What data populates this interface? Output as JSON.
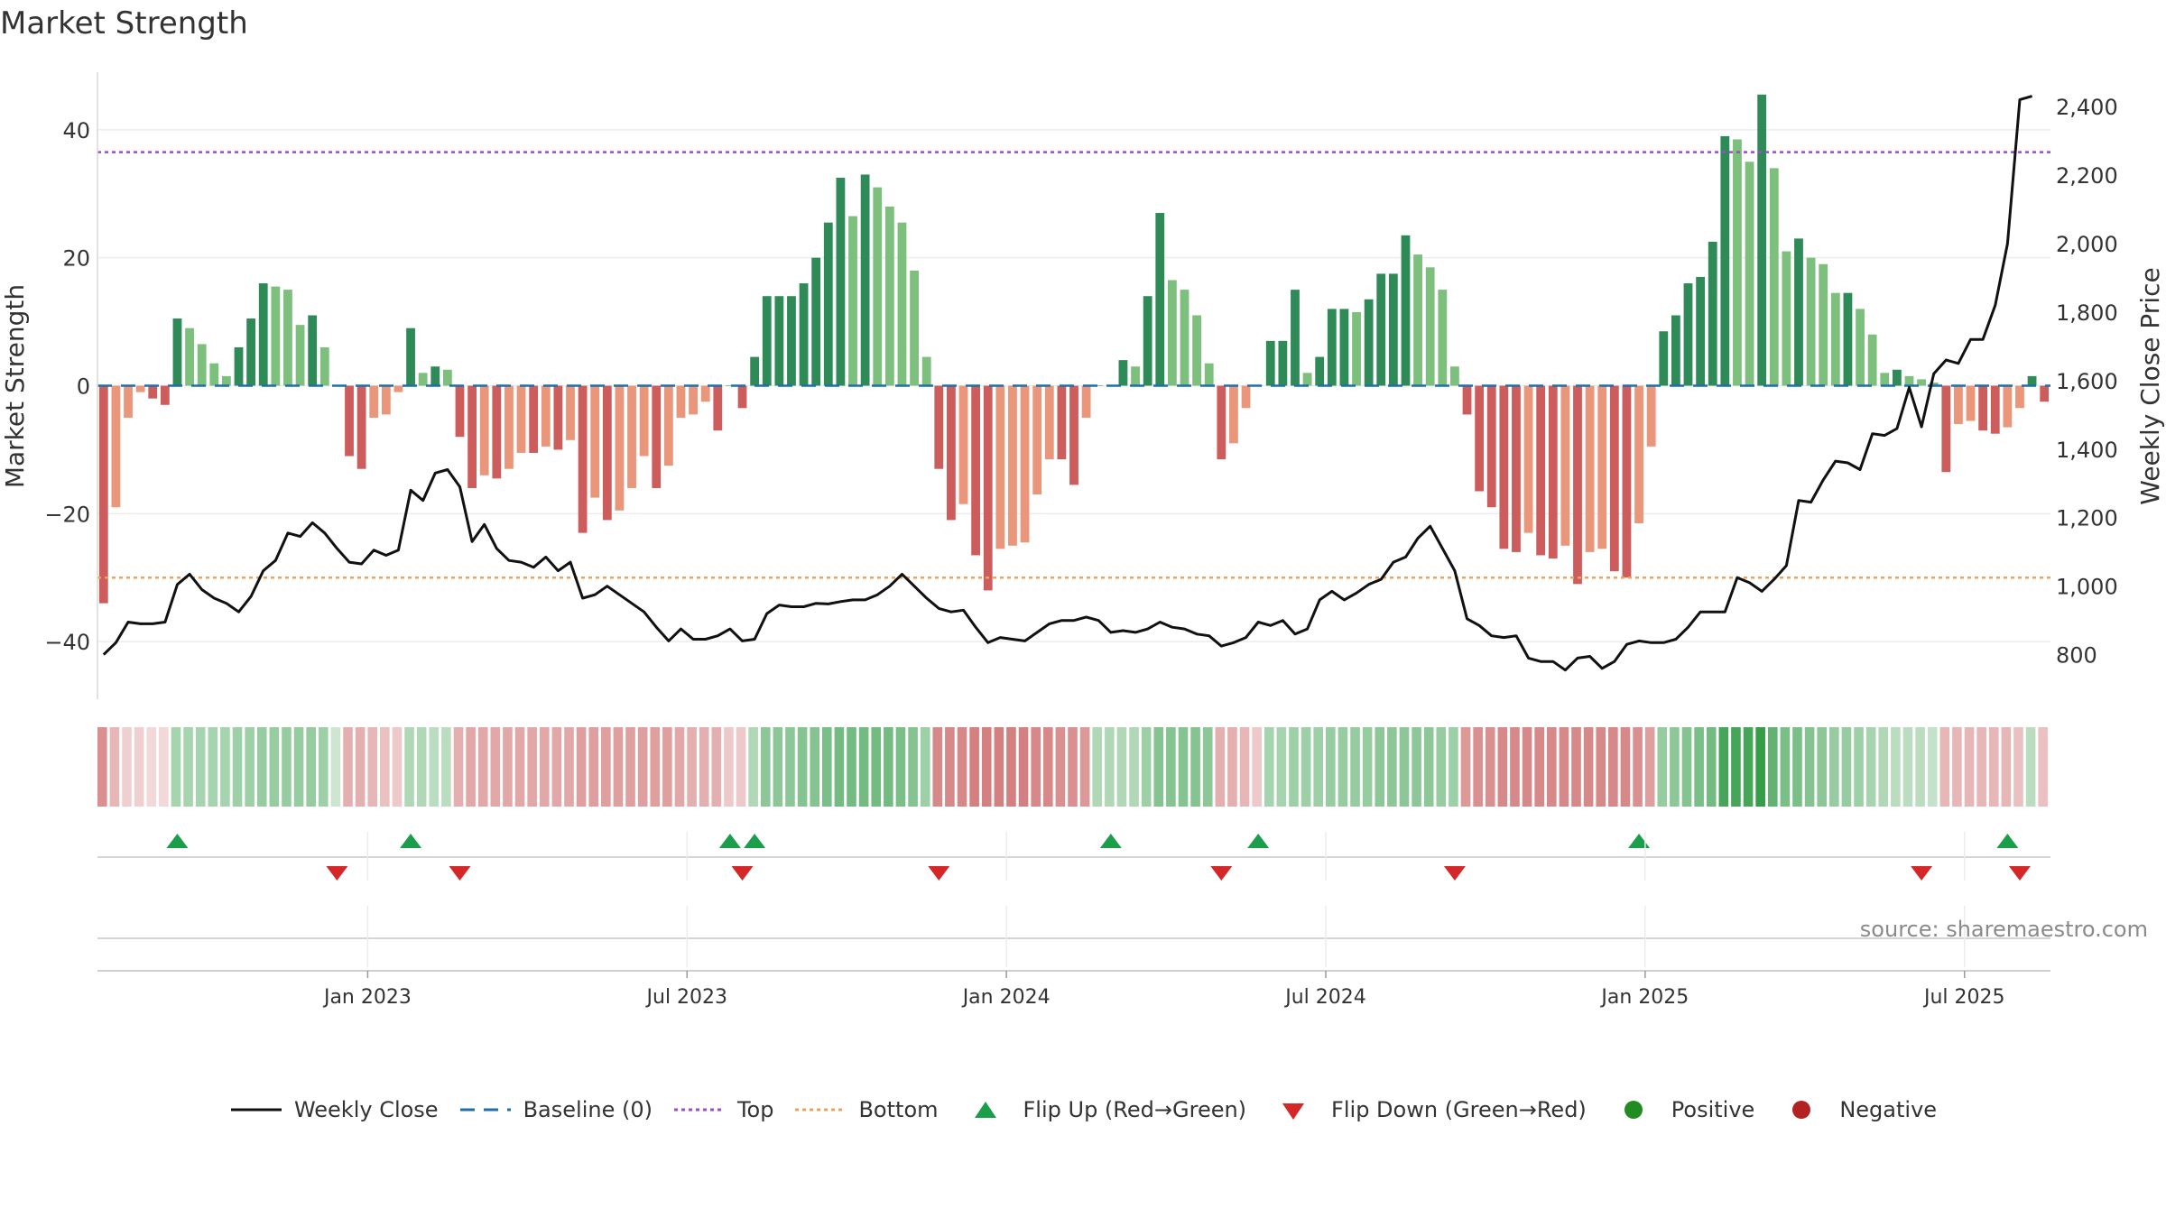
{
  "title": "Market Strength",
  "source": "source: sharemaestro.com",
  "colors": {
    "pos_strong": "#2e8b57",
    "pos_light": "#7dbf7d",
    "neg_strong": "#cd5c5c",
    "neg_light": "#e9967a",
    "line": "#111111",
    "baseline": "#1f6fa8",
    "top": "#9b4dca",
    "bottom": "#f0a058",
    "flip_up": "#1a9e4a",
    "flip_down": "#d62728",
    "positive": "#228b22",
    "negative": "#b22222"
  },
  "legend": {
    "weekly_close": "Weekly Close",
    "baseline": "Baseline (0)",
    "top": "Top",
    "bottom": "Bottom",
    "flip_up": "Flip Up (Red→Green)",
    "flip_down": "Flip Down (Green→Red)",
    "positive": "Positive",
    "negative": "Negative"
  },
  "chart_data": {
    "type": "bar",
    "title": "Market Strength",
    "ylabel": "Market Strength",
    "y2label": "Weekly Close Price",
    "ylim": [
      -49,
      49
    ],
    "y2lim": [
      670,
      2500
    ],
    "yticks": [
      -40,
      -20,
      0,
      20,
      40
    ],
    "y2ticks": [
      800,
      1000,
      1200,
      1400,
      1600,
      1800,
      2000,
      2200,
      2400
    ],
    "y2ticklabels": [
      "800",
      "1,000",
      "1,200",
      "1,400",
      "1,600",
      "1,800",
      "2,000",
      "2,200",
      "2,400"
    ],
    "top_level": 36.5,
    "bottom_level": -30,
    "baseline": 0,
    "xticks": [
      {
        "label": "Jan 2023",
        "week": 22
      },
      {
        "label": "Jul 2023",
        "week": 48
      },
      {
        "label": "Jan 2024",
        "week": 74
      },
      {
        "label": "Jul 2024",
        "week": 100
      },
      {
        "label": "Jan 2025",
        "week": 126
      },
      {
        "label": "Jul 2025",
        "week": 152
      }
    ],
    "strength": [
      -34,
      -19,
      -5,
      -1,
      -2,
      -3,
      10.5,
      9,
      6.5,
      3.5,
      1.5,
      6,
      10.5,
      16,
      15.5,
      15,
      9.5,
      11,
      6,
      0,
      -11,
      -13,
      -5,
      -4.5,
      -1,
      9,
      2,
      3,
      2.5,
      -8,
      -16,
      -14,
      -14.5,
      -13,
      -10.5,
      -10.5,
      -9.5,
      -10,
      -8.5,
      -23,
      -17.5,
      -21,
      -19.5,
      -16,
      -11,
      -16,
      -12.5,
      -5,
      -4.5,
      -2.5,
      -7,
      0,
      -3.5,
      4.5,
      14,
      14,
      14,
      16,
      20,
      25.5,
      32.5,
      26.5,
      33,
      31,
      28,
      25.5,
      18,
      4.5,
      -13,
      -21,
      -18.5,
      -26.5,
      -32,
      -25.5,
      -25,
      -24.5,
      -17,
      -11.5,
      -11.5,
      -15.5,
      -5,
      0,
      0,
      4,
      3,
      14,
      27,
      16.5,
      15,
      11,
      3.5,
      -11.5,
      -9,
      -3.5,
      0,
      7,
      7,
      15,
      2,
      4.5,
      12,
      12,
      11.5,
      13.5,
      17.5,
      17.5,
      23.5,
      20.5,
      18.5,
      15,
      3,
      -4.5,
      -16.5,
      -19,
      -25.5,
      -26,
      -23,
      -26.5,
      -27,
      -25,
      -31,
      -26,
      -25.5,
      -29,
      -30,
      -21.5,
      -9.5,
      8.5,
      11,
      16,
      17,
      22.5,
      39,
      38.5,
      35,
      45.5,
      34,
      21,
      23,
      20,
      19,
      14.5,
      14.5,
      12,
      8,
      2,
      2.5,
      1.5,
      1,
      0.5,
      -13.5,
      -6,
      -5.5,
      -7,
      -7.5,
      -6.5,
      -3.5,
      1.5,
      -2.5
    ],
    "price": [
      800,
      835,
      895,
      890,
      890,
      895,
      1005,
      1035,
      990,
      965,
      950,
      925,
      970,
      1045,
      1075,
      1155,
      1145,
      1185,
      1155,
      1110,
      1070,
      1065,
      1105,
      1090,
      1105,
      1280,
      1250,
      1330,
      1340,
      1290,
      1130,
      1180,
      1110,
      1075,
      1070,
      1055,
      1085,
      1045,
      1070,
      965,
      975,
      1000,
      975,
      950,
      925,
      880,
      840,
      875,
      845,
      845,
      855,
      875,
      840,
      845,
      920,
      945,
      940,
      940,
      950,
      948,
      955,
      960,
      960,
      975,
      1000,
      1035,
      1000,
      965,
      935,
      925,
      930,
      880,
      835,
      850,
      845,
      840,
      865,
      890,
      900,
      900,
      910,
      900,
      865,
      870,
      865,
      875,
      895,
      880,
      875,
      860,
      855,
      825,
      835,
      850,
      895,
      885,
      900,
      860,
      875,
      960,
      985,
      960,
      980,
      1005,
      1020,
      1070,
      1085,
      1140,
      1175,
      1110,
      1045,
      905,
      885,
      855,
      850,
      855,
      790,
      780,
      780,
      755,
      790,
      795,
      760,
      780,
      830,
      840,
      835,
      835,
      845,
      880,
      925,
      925,
      925,
      1025,
      1010,
      985,
      1020,
      1060,
      1250,
      1245,
      1310,
      1365,
      1360,
      1340,
      1445,
      1440,
      1460,
      1580,
      1465,
      1620,
      1660,
      1650,
      1720,
      1720,
      1820,
      2000,
      2420,
      2430
    ],
    "heat": [
      -0.55,
      -0.3,
      -0.15,
      -0.15,
      -0.1,
      -0.1,
      0.35,
      0.35,
      0.35,
      0.35,
      0.35,
      0.4,
      0.4,
      0.45,
      0.45,
      0.45,
      0.45,
      0.45,
      0.4,
      0.15,
      -0.35,
      -0.35,
      -0.3,
      -0.25,
      -0.2,
      0.3,
      0.3,
      0.25,
      0.25,
      -0.35,
      -0.4,
      -0.4,
      -0.4,
      -0.4,
      -0.4,
      -0.4,
      -0.4,
      -0.4,
      -0.4,
      -0.45,
      -0.45,
      -0.45,
      -0.45,
      -0.45,
      -0.45,
      -0.45,
      -0.45,
      -0.4,
      -0.35,
      -0.35,
      -0.35,
      -0.2,
      -0.2,
      0.3,
      0.5,
      0.5,
      0.5,
      0.55,
      0.55,
      0.6,
      0.65,
      0.65,
      0.65,
      0.65,
      0.65,
      0.6,
      0.55,
      0.4,
      -0.6,
      -0.6,
      -0.6,
      -0.65,
      -0.65,
      -0.65,
      -0.65,
      -0.65,
      -0.6,
      -0.6,
      -0.55,
      -0.55,
      -0.5,
      0.3,
      0.3,
      0.3,
      0.3,
      0.4,
      0.55,
      0.55,
      0.55,
      0.55,
      0.5,
      -0.35,
      -0.35,
      -0.3,
      -0.2,
      0.35,
      0.35,
      0.4,
      0.4,
      0.4,
      0.45,
      0.45,
      0.45,
      0.45,
      0.5,
      0.5,
      0.5,
      0.5,
      0.5,
      0.45,
      0.4,
      -0.5,
      -0.55,
      -0.55,
      -0.6,
      -0.6,
      -0.6,
      -0.6,
      -0.6,
      -0.6,
      -0.6,
      -0.6,
      -0.6,
      -0.6,
      -0.6,
      -0.55,
      -0.45,
      0.45,
      0.5,
      0.55,
      0.6,
      0.65,
      0.9,
      0.9,
      0.9,
      1.0,
      0.75,
      0.6,
      0.6,
      0.55,
      0.5,
      0.45,
      0.45,
      0.4,
      0.35,
      0.3,
      0.25,
      0.25,
      0.25,
      0.2,
      -0.3,
      -0.3,
      -0.3,
      -0.3,
      -0.3,
      -0.3,
      -0.25,
      0.25,
      -0.25
    ],
    "flip_up_weeks": [
      6,
      25,
      51,
      53,
      82,
      94,
      125,
      155
    ],
    "flip_down_weeks": [
      19,
      29,
      52,
      68,
      91,
      110,
      148,
      156
    ]
  }
}
